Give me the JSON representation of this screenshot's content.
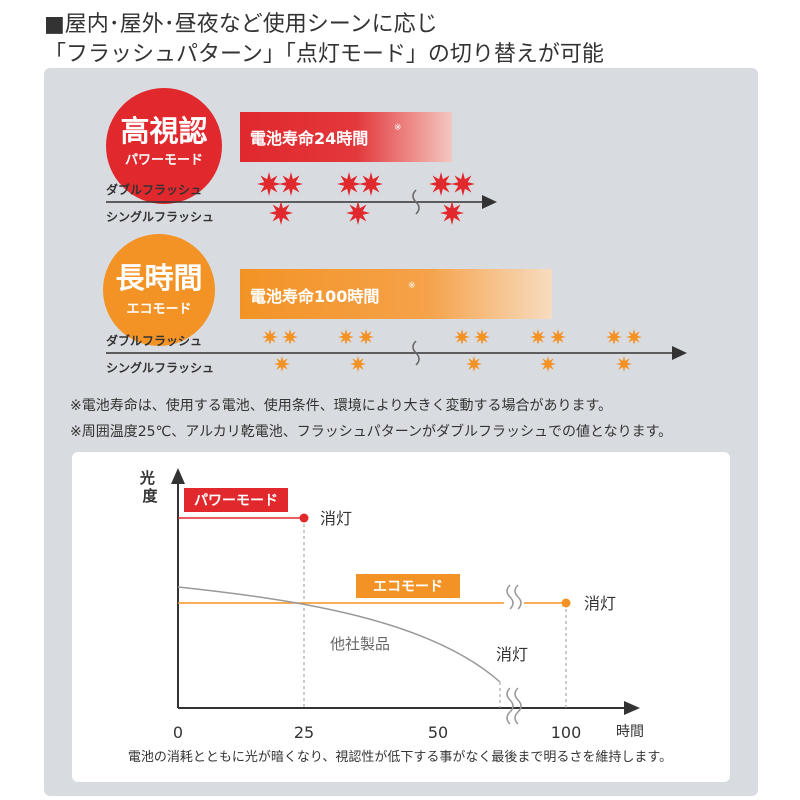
{
  "heading": {
    "line1": "■屋内･屋外･昼夜など使用シーンに応じ",
    "line2": "「フラッシュパターン」「点灯モード」の切り替えが可能"
  },
  "modes": {
    "power": {
      "title": "高視認",
      "subtitle": "パワーモード",
      "battery": "電池寿命24時間",
      "mark": "※",
      "color": "#e0282d",
      "double_label": "ダブルフラッシュ",
      "single_label": "シングルフラッシュ"
    },
    "eco": {
      "title": "長時間",
      "subtitle": "エコモード",
      "battery": "電池寿命100時間",
      "mark": "※",
      "color": "#f39325",
      "double_label": "ダブルフラッシュ",
      "single_label": "シングルフラッシュ"
    }
  },
  "notes": {
    "note1": "※電池寿命は、使用する電池、使用条件、環境により大きく変動する場合があります。",
    "note2": "※周囲温度25℃、アルカリ乾電池、フラッシュパターンがダブルフラッシュでの値となります。"
  },
  "chart_data": {
    "type": "line",
    "ylabel": "光度",
    "xlabel": "時間",
    "x_ticks": [
      "0",
      "25",
      "50",
      "100"
    ],
    "series": [
      {
        "name": "パワーモード",
        "color": "#e0282d",
        "off_at_hours": 24,
        "off_label": "消灯"
      },
      {
        "name": "エコモード",
        "color": "#f39325",
        "off_at_hours": 100,
        "off_label": "消灯"
      },
      {
        "name": "他社製品",
        "color": "#999999",
        "off_label": "消灯"
      }
    ],
    "caption": "電池の消耗とともに光が暗くなり、視認性が低下する事がなく最後まで明るさを維持します。"
  }
}
